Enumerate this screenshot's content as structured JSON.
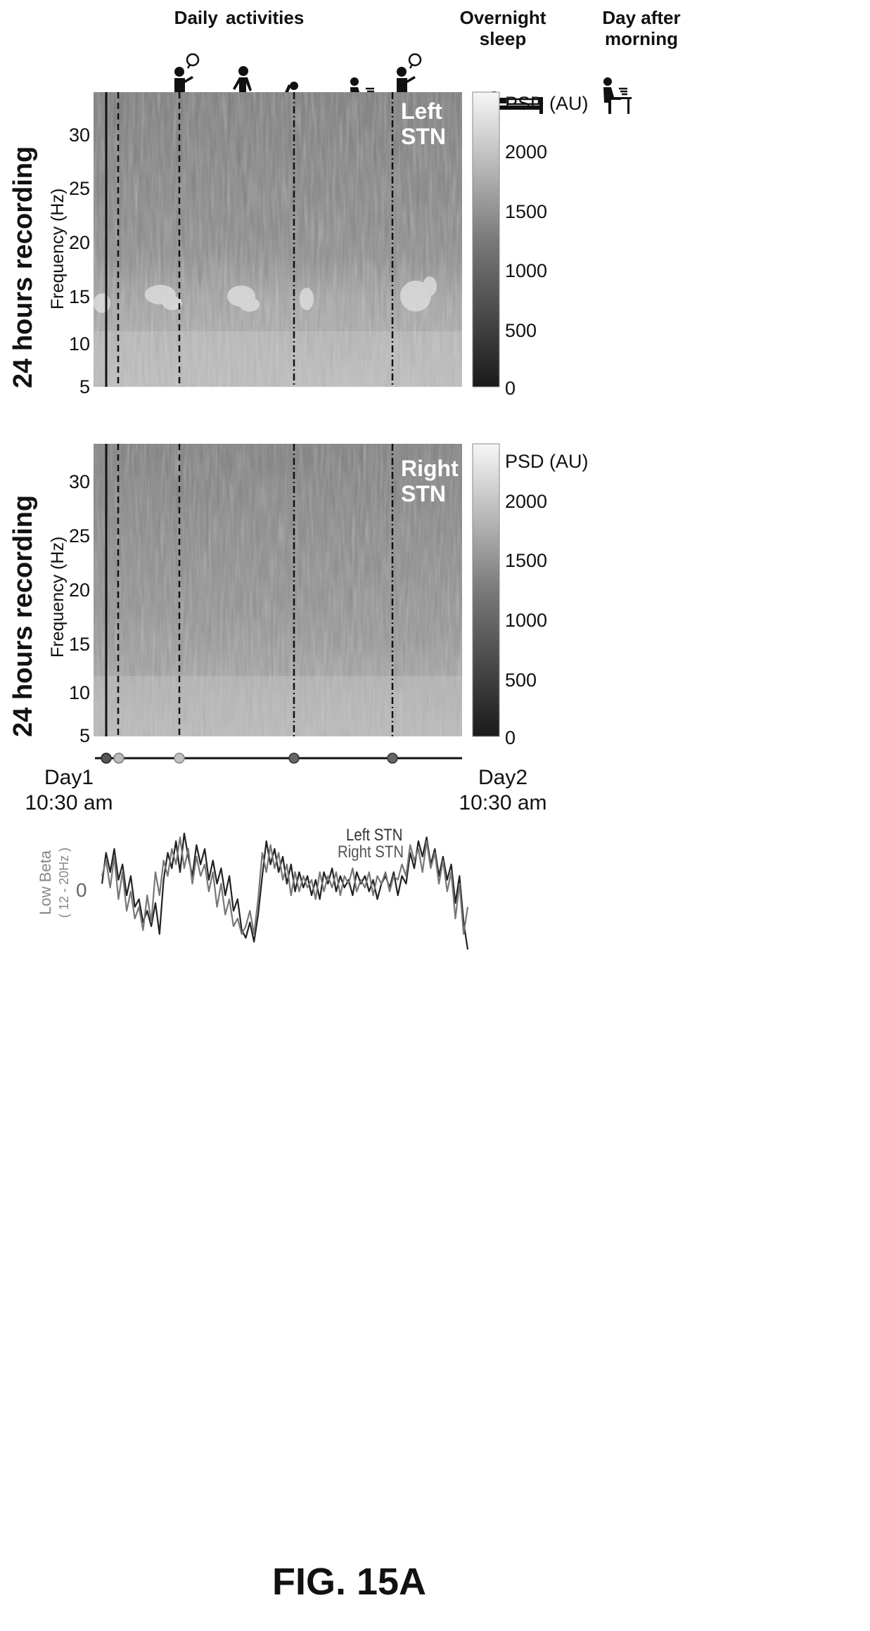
{
  "header": {
    "daily_activities": "Daily  activities",
    "overnight_sleep_line1": "Overnight",
    "overnight_sleep_line2": "sleep",
    "day_after_line1": "Day after",
    "day_after_line2": "morning",
    "icons": [
      "standing-talking-person-icon",
      "walking-person-icon",
      "reclining-person-icon",
      "seated-person-at-desk-icon",
      "standing-talking-person-icon",
      "bed-icon",
      "seated-person-at-desk-icon"
    ]
  },
  "panels": [
    {
      "side_label": "24 hours recording",
      "ylabel": "Frequency (Hz)",
      "stn_line1": "Left",
      "stn_line2": "STN",
      "colorbar_title": "PSD (AU)",
      "colorbar_ticks": [
        "2000",
        "1500",
        "1000",
        "500",
        "0"
      ],
      "yticks": [
        "30",
        "25",
        "20",
        "15",
        "10",
        "5"
      ]
    },
    {
      "side_label": "24 hours recording",
      "ylabel": "Frequency (Hz)",
      "stn_line1": "Right",
      "stn_line2": "STN",
      "colorbar_title": "PSD (AU)",
      "colorbar_ticks": [
        "2000",
        "1500",
        "1000",
        "500",
        "0"
      ],
      "yticks": [
        "30",
        "25",
        "20",
        "15",
        "10",
        "5"
      ]
    }
  ],
  "timeline": {
    "start_line1": "Day1",
    "start_line2": "10:30 am",
    "end_line1": "Day2",
    "end_line2": "10:30 am",
    "marker_colors": [
      "#555555",
      "#bbbbbb",
      "#c0c0c0",
      "#666666",
      "#666666"
    ]
  },
  "lowbeta": {
    "ylabel_line1": "Low Beta",
    "ylabel_line2": "( 12 - 20Hz )",
    "zero_tick": "0",
    "legend_left": "Left STN",
    "legend_right": "Right STN"
  },
  "figure_label": "FIG. 15A",
  "chart_data": [
    {
      "type": "heatmap",
      "title": "Left STN",
      "ylabel": "Frequency (Hz)",
      "ylim": [
        5,
        34
      ],
      "yticks": [
        5,
        10,
        15,
        20,
        25,
        30
      ],
      "colorbar_label": "PSD (AU)",
      "colorbar_range": [
        0,
        2400
      ],
      "colorbar_ticks": [
        0,
        500,
        1000,
        1500,
        2000
      ],
      "colormap": "grayscale",
      "event_markers": [
        "solid",
        "dashed",
        "dashed",
        "dash-dot",
        "dash-dot"
      ],
      "high_power_band_hz": [
        12,
        17
      ]
    },
    {
      "type": "heatmap",
      "title": "Right STN",
      "ylabel": "Frequency (Hz)",
      "ylim": [
        5,
        34
      ],
      "yticks": [
        5,
        10,
        15,
        20,
        25,
        30
      ],
      "colorbar_label": "PSD (AU)",
      "colorbar_range": [
        0,
        2400
      ],
      "colorbar_ticks": [
        0,
        500,
        1000,
        1500,
        2000
      ],
      "colormap": "grayscale",
      "event_markers": [
        "solid",
        "dashed",
        "dashed",
        "dash-dot",
        "dash-dot"
      ]
    },
    {
      "type": "line",
      "ylabel": "Low Beta ( 12 - 20Hz )",
      "yticks": [
        0
      ],
      "series": [
        {
          "name": "Left STN",
          "color": "#222222",
          "values": [
            0.1,
            0.9,
            0.4,
            1.0,
            0.2,
            0.6,
            -0.2,
            0.3,
            -0.5,
            -0.3,
            -0.9,
            -0.6,
            -1.0,
            -0.4,
            -1.2,
            0.2,
            0.9,
            0.5,
            1.2,
            0.4,
            1.4,
            0.8,
            0.3,
            1.1,
            0.6,
            1.0,
            0.2,
            0.7,
            0.1,
            0.5,
            -0.2,
            0.3,
            -0.6,
            -0.3,
            -1.1,
            -1.3,
            -0.9,
            -1.4,
            -0.7,
            0.3,
            1.2,
            0.6,
            1.0,
            0.4,
            0.8,
            0.1,
            0.6,
            -0.1,
            0.4,
            0.0,
            0.3,
            -0.2,
            0.2,
            -0.3,
            0.4,
            0.1,
            0.5,
            -0.1,
            0.3,
            0.0,
            0.2,
            -0.2,
            0.4,
            0.1,
            0.3,
            -0.1,
            0.2,
            -0.3,
            0.1,
            0.3,
            0.0,
            0.4,
            -0.2,
            0.3,
            0.1,
            0.9,
            0.5,
            1.2,
            0.8,
            1.3,
            0.6,
            1.0,
            0.3,
            0.8,
            0.2,
            0.6,
            -0.4,
            0.3,
            -0.9,
            -1.6
          ]
        },
        {
          "name": "Right STN",
          "color": "#777777",
          "values": [
            0.3,
            0.7,
            0.0,
            0.8,
            -0.3,
            0.4,
            -0.6,
            -0.1,
            -0.8,
            -0.5,
            -1.1,
            -0.2,
            -0.9,
            0.4,
            -0.2,
            0.7,
            0.3,
            1.0,
            0.6,
            1.3,
            0.5,
            1.0,
            0.1,
            0.8,
            0.3,
            0.6,
            -0.1,
            0.4,
            -0.5,
            0.1,
            -0.7,
            -0.3,
            -1.0,
            -0.8,
            -1.2,
            -1.0,
            -0.6,
            -1.2,
            -0.3,
            0.9,
            0.4,
            1.1,
            0.5,
            0.9,
            0.2,
            0.6,
            -0.2,
            0.4,
            -0.1,
            0.3,
            0.0,
            0.2,
            -0.3,
            0.4,
            -0.1,
            0.3,
            0.0,
            0.4,
            -0.2,
            0.3,
            0.1,
            0.5,
            -0.1,
            0.2,
            0.0,
            0.4,
            -0.2,
            0.3,
            0.1,
            0.4,
            -0.1,
            0.3,
            0.2,
            0.6,
            0.3,
            1.1,
            0.7,
            1.0,
            0.4,
            1.2,
            0.5,
            0.9,
            0.1,
            0.7,
            -0.1,
            0.4,
            -0.8,
            0.1,
            -1.2,
            -0.5
          ]
        }
      ]
    }
  ]
}
